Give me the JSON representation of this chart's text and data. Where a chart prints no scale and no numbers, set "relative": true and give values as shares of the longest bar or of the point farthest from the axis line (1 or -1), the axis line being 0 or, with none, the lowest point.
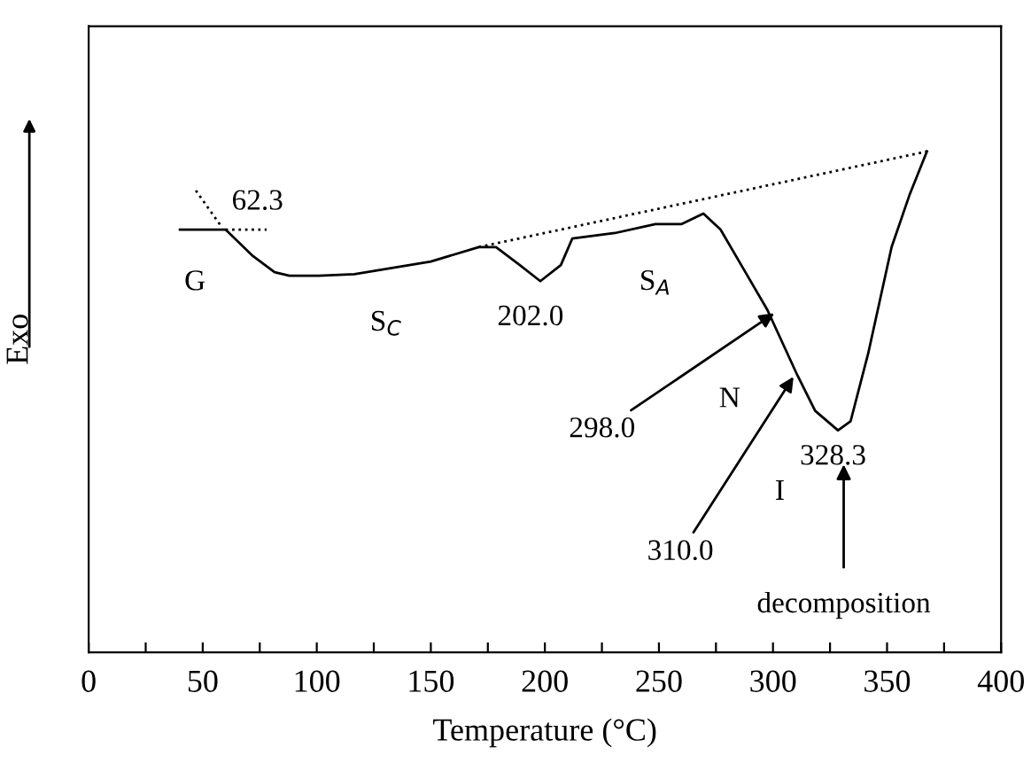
{
  "chart_data": {
    "type": "line",
    "relative": true,
    "xlabel": "Temperature (°C)",
    "ylabel": "Exo",
    "xlim": [
      0,
      400
    ],
    "xticks": [
      0,
      {
        "value": 25,
        "label": null
      },
      50,
      {
        "value": 75,
        "label": null
      },
      100,
      {
        "value": 125,
        "label": null
      },
      150,
      {
        "value": 175,
        "label": null
      },
      200,
      {
        "value": 225,
        "label": null
      },
      250,
      {
        "value": 275,
        "label": null
      },
      300,
      {
        "value": 325,
        "label": null
      },
      350,
      {
        "value": 375,
        "label": null
      },
      400
    ],
    "series": [
      {
        "color": "#000000",
        "line_style": "solid",
        "x": [
          40,
          60,
          72,
          81.5,
          88,
          101,
          116.5,
          150,
          171,
          178.6,
          189,
          198,
          207,
          212,
          230.7,
          248.5,
          260,
          269.5,
          277,
          287,
          297.5,
          310.7,
          318.5,
          328.5,
          334,
          341.7,
          352,
          360,
          367.5
        ],
        "values": [
          0.844,
          0.844,
          0.791,
          0.759,
          0.752,
          0.752,
          0.755,
          0.78,
          0.809,
          0.809,
          0.773,
          0.741,
          0.773,
          0.826,
          0.837,
          0.855,
          0.855,
          0.876,
          0.844,
          0.766,
          0.684,
          0.553,
          0.482,
          0.443,
          0.461,
          0.596,
          0.809,
          0.915,
          1
        ]
      },
      {
        "color": "#000000",
        "line_style": "dotted",
        "x": [
          171,
          367.5
        ],
        "values": [
          0.809,
          1
        ]
      },
      {
        "color": "#000000",
        "line_style": "dotted",
        "x": [
          60,
          78
        ],
        "values": [
          0.844,
          0.844
        ]
      },
      {
        "color": "#000000",
        "line_style": "dotted",
        "x": [
          47,
          58
        ],
        "values": [
          0.922,
          0.851
        ]
      }
    ],
    "annotations": [
      {
        "text": "62.3",
        "x": 60,
        "y": 0.844
      },
      "G",
      "S$_{C}$",
      {
        "text": "202.0",
        "x": 198,
        "y": 0.741
      },
      "S$_{A}$",
      "N",
      "I",
      {
        "text": "328.3",
        "x": 328.5,
        "y": 0.443
      },
      {
        "text": "298.0",
        "x": 300.6,
        "y": 0.677
      },
      {
        "text": "310.0",
        "x": 309,
        "y": 0.55
      },
      "decomposition"
    ]
  }
}
